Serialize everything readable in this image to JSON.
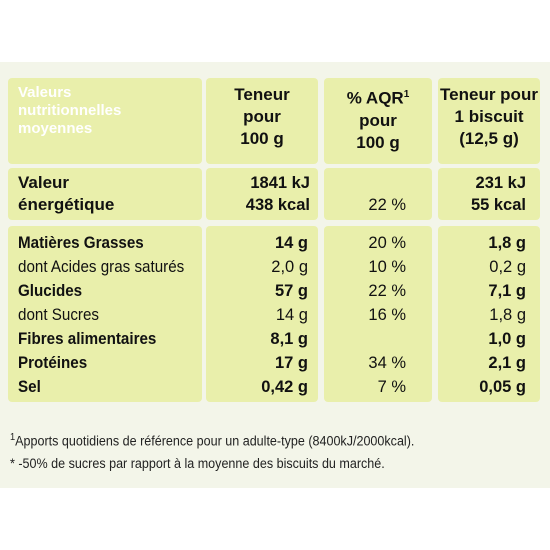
{
  "header": {
    "label": "Valeurs\nnutritionnelles\nmoyennes",
    "col1": "Teneur\npour\n100 g",
    "col2_main": "% AQR",
    "col2_sup": "1",
    "col2_rest": "pour\n100 g",
    "col3": "Teneur pour\n1 biscuit\n(12,5 g)"
  },
  "energy": {
    "label": "Valeur\nénergétique",
    "col1_line1": "1841 kJ",
    "col1_line2": "438 kcal",
    "col2": "22 %",
    "col3_line1": "231 kJ",
    "col3_line2": "55 kcal"
  },
  "rows": [
    {
      "label": "Matières Grasses",
      "bold": true,
      "per100": "14 g",
      "aqr": "20 %",
      "perBiscuit": "1,8 g"
    },
    {
      "label": "dont Acides gras saturés",
      "bold": false,
      "per100": "2,0 g",
      "aqr": "10 %",
      "perBiscuit": "0,2 g"
    },
    {
      "label": "Glucides",
      "bold": true,
      "per100": "57 g",
      "aqr": "22 %",
      "perBiscuit": "7,1 g"
    },
    {
      "label": "dont Sucres",
      "bold": false,
      "per100": "14 g",
      "aqr": "16 %",
      "perBiscuit": "1,8 g"
    },
    {
      "label": "Fibres alimentaires",
      "bold": true,
      "per100": "8,1 g",
      "aqr": "",
      "perBiscuit": "1,0 g"
    },
    {
      "label": "Protéines",
      "bold": true,
      "per100": "17 g",
      "aqr": "34 %",
      "perBiscuit": "2,1 g"
    },
    {
      "label": "Sel",
      "bold": true,
      "per100": "0,42 g",
      "aqr": "7 %",
      "perBiscuit": "0,05 g"
    }
  ],
  "footnotes": {
    "note1_sup": "1",
    "note1": "Apports quotidiens de référence pour un adulte-type (8400kJ/2000kcal).",
    "note2": "* -50% de sucres par rapport à la moyenne des biscuits du marché."
  },
  "colors": {
    "cell_bg": "#e9efab",
    "panel_bg": "#f3f5e9",
    "header_label_color": "#ffffff"
  }
}
